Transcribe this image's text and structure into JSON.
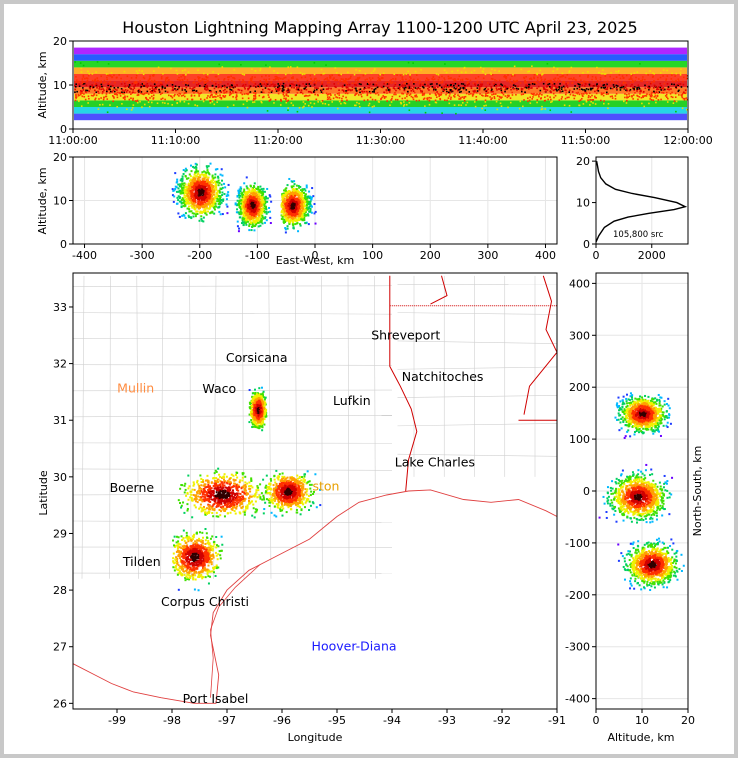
{
  "chart_data": [
    {
      "panel": "time-altitude",
      "type": "heatmap",
      "title": "Houston Lightning Mapping Array 1100-1200 UTC April 23, 2025",
      "ylabel": "Altitude, km",
      "xlabel": "",
      "x_ticks": [
        "11:00:00",
        "11:10:00",
        "11:20:00",
        "11:30:00",
        "11:40:00",
        "11:50:00",
        "12:00:00"
      ],
      "xlim": [
        "11:00:00",
        "12:00:00"
      ],
      "ylim": [
        0,
        20
      ],
      "y_ticks": [
        0,
        10,
        20
      ],
      "color_bands_by_altitude_km": [
        [
          2,
          "#3030ff"
        ],
        [
          3.5,
          "#00cfe0"
        ],
        [
          5,
          "#00c800"
        ],
        [
          6.5,
          "#f0e000"
        ],
        [
          8,
          "#ff6000"
        ],
        [
          9.5,
          "#e00000"
        ],
        [
          11,
          "#ff2000"
        ],
        [
          12.5,
          "#ffa000"
        ],
        [
          14,
          "#00d000"
        ],
        [
          15.5,
          "#0040ff"
        ],
        [
          17,
          "#a000ff"
        ]
      ]
    },
    {
      "panel": "east-west-altitude",
      "type": "heatmap",
      "xlabel": "East-West, km",
      "ylabel": "Altitude, km",
      "xlim": [
        -420,
        420
      ],
      "ylim": [
        0,
        20
      ],
      "x_ticks": [
        -400,
        -300,
        -200,
        -100,
        0,
        100,
        200,
        300,
        400
      ],
      "y_ticks": [
        0,
        10,
        20
      ],
      "clusters": [
        {
          "x": [
            -250,
            -130
          ],
          "alt": [
            1,
            20
          ],
          "peak_x": -200,
          "peak_alt": 12
        },
        {
          "x": [
            -140,
            -60
          ],
          "alt": [
            2,
            18
          ],
          "peak_x": -110,
          "peak_alt": 9
        },
        {
          "x": [
            -60,
            30
          ],
          "alt": [
            0,
            16
          ],
          "peak_x": -40,
          "peak_alt": 9
        }
      ]
    },
    {
      "panel": "altitude-histogram",
      "type": "line",
      "annotation": "105,800 src",
      "x_ticks": [
        0,
        2000
      ],
      "y_ticks": [
        0,
        10,
        20
      ],
      "xlim": [
        0,
        3300
      ],
      "ylim": [
        0,
        21
      ],
      "points": [
        [
          0,
          0.5
        ],
        [
          100,
          2
        ],
        [
          300,
          4
        ],
        [
          650,
          5.5
        ],
        [
          1150,
          6.5
        ],
        [
          1900,
          7.4
        ],
        [
          2800,
          8.3
        ],
        [
          3200,
          9
        ],
        [
          2900,
          10
        ],
        [
          2100,
          11.2
        ],
        [
          1300,
          12.2
        ],
        [
          700,
          13.2
        ],
        [
          350,
          14.5
        ],
        [
          170,
          16
        ],
        [
          90,
          17.5
        ],
        [
          50,
          19
        ],
        [
          20,
          20
        ]
      ]
    },
    {
      "panel": "plan-view",
      "type": "scatter",
      "xlabel": "Longitude",
      "ylabel": "Latitude",
      "xlim": [
        -99.8,
        -91
      ],
      "ylim": [
        25.9,
        33.6
      ],
      "x_ticks": [
        -99,
        -98,
        -97,
        -96,
        -95,
        -94,
        -93,
        -92,
        -91
      ],
      "y_ticks": [
        26,
        27,
        28,
        29,
        30,
        31,
        32,
        33
      ],
      "cities": [
        {
          "name": "Shreveport",
          "lon": -93.75,
          "lat": 32.5,
          "color": "#000000"
        },
        {
          "name": "Corsicana",
          "lon": -96.46,
          "lat": 32.1,
          "color": "#000000"
        },
        {
          "name": "Mullin",
          "lon": -98.66,
          "lat": 31.56,
          "color": "#ff8c40"
        },
        {
          "name": "Waco",
          "lon": -97.14,
          "lat": 31.55,
          "color": "#000000"
        },
        {
          "name": "Natchitoches",
          "lon": -93.08,
          "lat": 31.76,
          "color": "#000000"
        },
        {
          "name": "Lufkin",
          "lon": -94.73,
          "lat": 31.34,
          "color": "#000000"
        },
        {
          "name": "Lake Charles",
          "lon": -93.22,
          "lat": 30.25,
          "color": "#000000"
        },
        {
          "name": "Boerne",
          "lon": -98.73,
          "lat": 29.8,
          "color": "#000000"
        },
        {
          "name": "ston",
          "lon": -95.2,
          "lat": 29.83,
          "color": "#e8a000"
        },
        {
          "name": "Tilden",
          "lon": -98.55,
          "lat": 28.5,
          "color": "#000000"
        },
        {
          "name": "Corpus Christi",
          "lon": -97.4,
          "lat": 27.79,
          "color": "#000000"
        },
        {
          "name": "Hoover-Diana",
          "lon": -94.69,
          "lat": 27.0,
          "color": "#1a1aff"
        },
        {
          "name": "Port Isabel",
          "lon": -97.21,
          "lat": 26.08,
          "color": "#000000"
        }
      ],
      "storm_clusters": [
        {
          "lon": [
            -96.7,
            -96.3
          ],
          "lat": [
            30.8,
            31.6
          ],
          "peak": [
            -96.45,
            31.2
          ]
        },
        {
          "lon": [
            -97.9,
            -96.0
          ],
          "lat": [
            29.3,
            30.35
          ],
          "peak": [
            -97.1,
            29.7
          ]
        },
        {
          "lon": [
            -96.4,
            -95.3
          ],
          "lat": [
            29.3,
            30.2
          ],
          "peak": [
            -95.9,
            29.75
          ]
        },
        {
          "lon": [
            -98.0,
            -96.8
          ],
          "lat": [
            28.0,
            29.1
          ],
          "peak": [
            -97.6,
            28.6
          ]
        }
      ]
    },
    {
      "panel": "altitude-north-south",
      "type": "heatmap",
      "xlabel": "Altitude, km",
      "ylabel": "North-South, km",
      "xlim": [
        0,
        20
      ],
      "ylim": [
        -420,
        420
      ],
      "x_ticks": [
        0,
        10,
        20
      ],
      "y_ticks": [
        -400,
        -300,
        -200,
        -100,
        0,
        100,
        200,
        300,
        400
      ],
      "clusters": [
        {
          "ns": [
            90,
            200
          ],
          "alt": [
            2,
            18
          ],
          "peak_ns": 150,
          "peak_alt": 10
        },
        {
          "ns": [
            -60,
            80
          ],
          "alt": [
            0,
            20
          ],
          "peak_ns": -10,
          "peak_alt": 9
        },
        {
          "ns": [
            -190,
            -60
          ],
          "alt": [
            1,
            19
          ],
          "peak_ns": -140,
          "peak_alt": 12
        }
      ]
    }
  ]
}
